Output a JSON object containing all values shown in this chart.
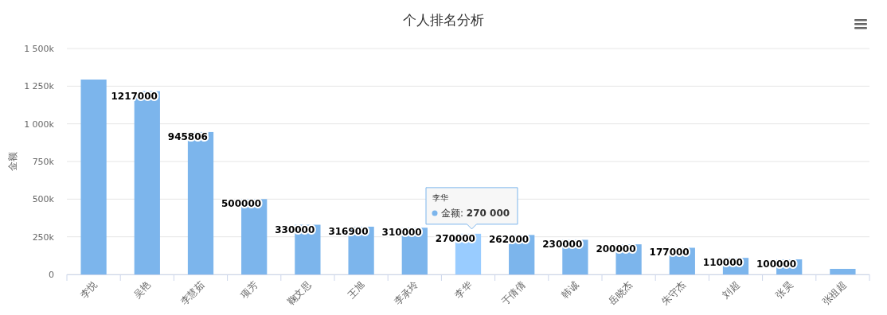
{
  "chart_data": {
    "type": "bar",
    "title": "个人排名分析",
    "ylabel": "金额",
    "categories": [
      "李悦",
      "吴艳",
      "李慧茹",
      "项芳",
      "鞠文思",
      "王旭",
      "李承玲",
      "李华",
      "于倩倩",
      "韩诚",
      "岳晓杰",
      "朱守杰",
      "刘超",
      "张昊",
      "张祖超"
    ],
    "values": [
      1294000,
      1217000,
      945806,
      500000,
      330000,
      316900,
      310000,
      270000,
      262000,
      230000,
      200000,
      177000,
      110000,
      100000,
      37000
    ],
    "colors": [
      "#7cb5ec",
      "#7cb5ec",
      "#7cb5ec",
      "#7cb5ec",
      "#7cb5ec",
      "#7cb5ec",
      "#7cb5ec",
      "#99ccff",
      "#7cb5ec",
      "#7cb5ec",
      "#7cb5ec",
      "#7cb5ec",
      "#7cb5ec",
      "#7cb5ec",
      "#7cb5ec"
    ],
    "value_labels": [
      null,
      "1217000",
      "945806",
      "500000",
      "330000",
      "316900",
      "310000",
      "270000",
      "262000",
      "230000",
      "200000",
      "177000",
      "110000",
      "100000",
      null
    ],
    "ylim": [
      0,
      1500000
    ],
    "yticks": [
      0,
      {
        "value": 250000,
        "label": "250k"
      },
      {
        "value": 500000,
        "label": "500k"
      },
      {
        "value": 750000,
        "label": "750k"
      },
      {
        "value": 1000000,
        "label": "1 000k"
      },
      {
        "value": 1250000,
        "label": "1 250k"
      },
      {
        "value": 1500000,
        "label": "1 500k"
      }
    ],
    "grid": "y",
    "annotations": [
      "李华",
      {
        "text": "金额: 270 000",
        "x": "李华",
        "y": 270000
      }
    ]
  }
}
